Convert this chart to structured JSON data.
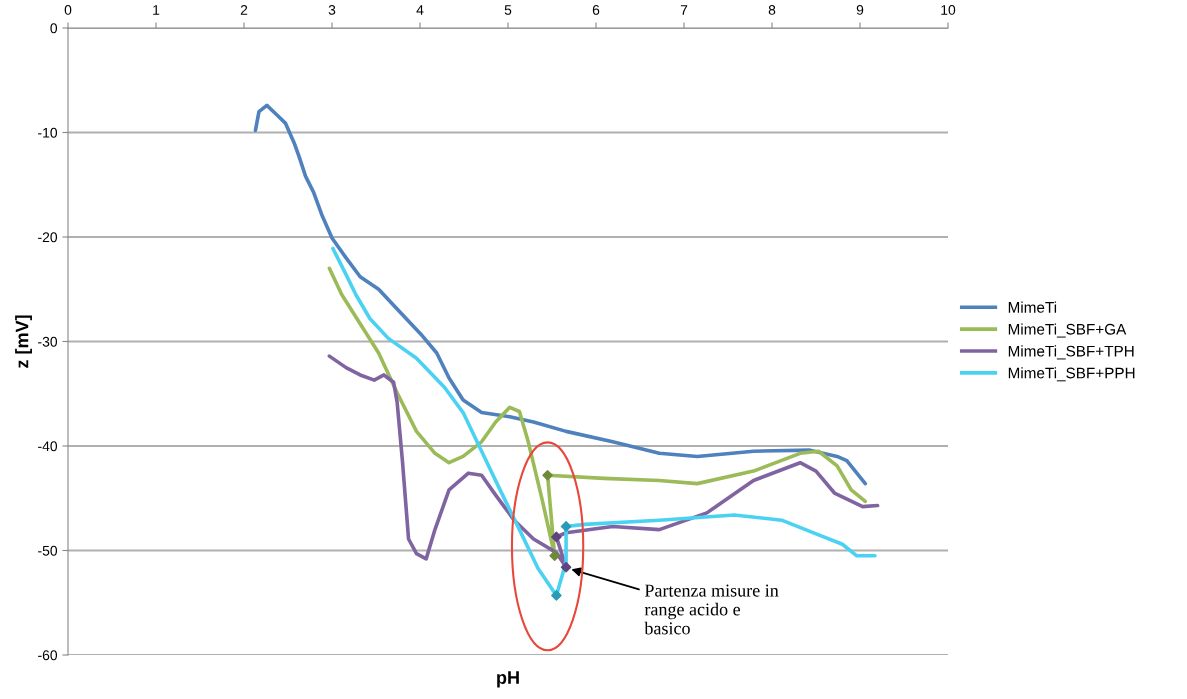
{
  "chart_data": {
    "type": "line",
    "xlabel": "pH",
    "ylabel": "z [mV]",
    "xlim": [
      0,
      10
    ],
    "xticks": [
      0,
      1,
      2,
      3,
      4,
      5,
      6,
      7,
      8,
      9,
      10
    ],
    "ylim": [
      -60,
      0
    ],
    "yticks": [
      -60,
      -50,
      -40,
      -30,
      -20,
      -10,
      0
    ],
    "grid": "y",
    "legend": "right",
    "marker": "none",
    "line_style": "solid",
    "series": [
      {
        "name": "MimeTi",
        "color": "#4f81bd",
        "x": [
          2.13,
          2.17,
          2.26,
          2.36,
          2.47,
          2.57,
          2.63,
          2.7,
          2.79,
          2.89,
          3.0,
          3.16,
          3.32,
          3.53,
          3.74,
          4.01,
          4.19,
          4.33,
          4.49,
          4.7,
          5.02,
          5.29,
          5.66,
          6.19,
          6.72,
          7.15,
          7.79,
          8.43,
          8.74,
          8.85,
          9.06
        ],
        "values": [
          -9.8,
          -8.0,
          -7.4,
          -8.2,
          -9.1,
          -11.0,
          -12.4,
          -14.2,
          -15.7,
          -18.0,
          -20.1,
          -22.0,
          -23.8,
          -25.0,
          -26.9,
          -29.3,
          -31.1,
          -33.5,
          -35.6,
          -36.8,
          -37.2,
          -37.7,
          -38.6,
          -39.6,
          -40.7,
          -41.0,
          -40.5,
          -40.4,
          -41.0,
          -41.4,
          -43.6
        ]
      },
      {
        "name": "MimeTi_SBF+GA",
        "color": "#9bbb59",
        "x": [
          2.97,
          3.11,
          3.32,
          3.53,
          3.74,
          3.96,
          4.17,
          4.33,
          4.49,
          4.7,
          4.86,
          5.02,
          5.13,
          5.23,
          5.39,
          5.53,
          5.45,
          6.09,
          6.72,
          7.15,
          7.79,
          8.32,
          8.53,
          8.74,
          8.9,
          9.06
        ],
        "values": [
          -23.0,
          -25.5,
          -28.3,
          -31.1,
          -34.9,
          -38.6,
          -40.7,
          -41.6,
          -41.0,
          -39.6,
          -37.7,
          -36.3,
          -36.7,
          -39.6,
          -45.2,
          -50.5,
          -42.8,
          -43.1,
          -43.3,
          -43.6,
          -42.4,
          -40.7,
          -40.5,
          -41.9,
          -44.2,
          -45.3
        ]
      },
      {
        "name": "MimeTi_SBF+TPH",
        "color": "#8064a2",
        "x": [
          2.97,
          3.16,
          3.32,
          3.48,
          3.59,
          3.7,
          3.74,
          3.8,
          3.87,
          3.96,
          4.07,
          4.17,
          4.33,
          4.55,
          4.7,
          4.86,
          5.07,
          5.29,
          5.55,
          5.66,
          5.55,
          5.66,
          6.19,
          6.72,
          7.26,
          7.79,
          8.32,
          8.5,
          8.71,
          9.03,
          9.2
        ],
        "values": [
          -31.4,
          -32.5,
          -33.2,
          -33.7,
          -33.2,
          -33.9,
          -35.8,
          -41.4,
          -48.9,
          -50.3,
          -50.8,
          -48.0,
          -44.2,
          -42.6,
          -42.8,
          -44.7,
          -47.1,
          -48.9,
          -50.2,
          -51.6,
          -48.7,
          -48.3,
          -47.7,
          -48.0,
          -46.4,
          -43.3,
          -41.6,
          -42.4,
          -44.5,
          -45.8,
          -45.7
        ]
      },
      {
        "name": "MimeTi_SBF+PPH",
        "color": "#4bd2f3",
        "x": [
          3.01,
          3.16,
          3.27,
          3.43,
          3.64,
          3.96,
          4.28,
          4.49,
          4.7,
          4.91,
          5.13,
          5.34,
          5.55,
          5.66,
          5.66,
          5.87,
          6.72,
          7.57,
          8.11,
          8.53,
          8.8,
          8.96,
          9.17
        ],
        "values": [
          -21.1,
          -23.6,
          -25.5,
          -27.8,
          -29.7,
          -31.6,
          -34.4,
          -36.8,
          -40.5,
          -44.2,
          -48.0,
          -51.7,
          -54.3,
          -51.1,
          -47.7,
          -47.5,
          -47.1,
          -46.6,
          -47.1,
          -48.5,
          -49.4,
          -50.5,
          -50.5
        ]
      },
      {
        "type": "scatter",
        "marker": "diamond",
        "color": "#6e8a3a",
        "x": [
          5.53,
          5.45
        ],
        "values": [
          -50.5,
          -42.8
        ]
      },
      {
        "type": "scatter",
        "marker": "diamond",
        "color": "#5e4580",
        "x": [
          5.66,
          5.55
        ],
        "values": [
          -51.6,
          -48.7
        ]
      },
      {
        "type": "scatter",
        "marker": "diamond",
        "color": "#2a9ab5",
        "x": [
          5.55,
          5.66
        ],
        "values": [
          -54.3,
          -47.7
        ]
      }
    ],
    "annotations": [
      {
        "text": "Partenza misure in\nrange acido e\nbasico",
        "x": 5.72,
        "y": -51.8
      }
    ]
  }
}
